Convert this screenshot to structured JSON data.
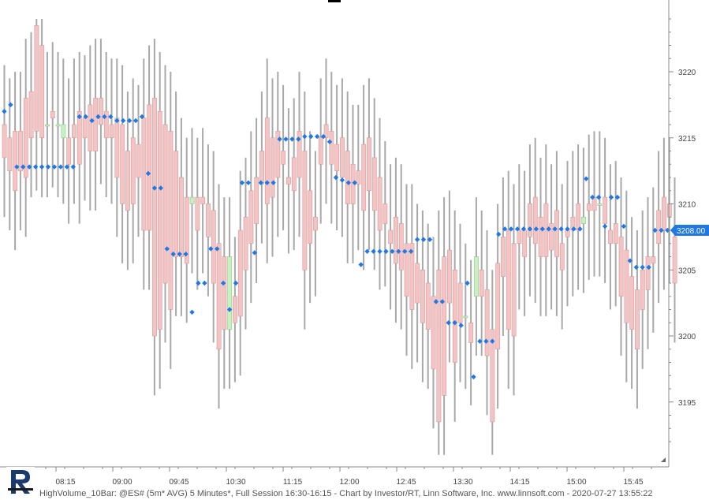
{
  "chart_data": {
    "type": "candlestick",
    "y_ticks": [
      3195,
      3200,
      3205,
      3210,
      3215,
      3220
    ],
    "ylim": [
      3190.5,
      3224.5
    ],
    "x_ticks": [
      "08:15",
      "09:00",
      "09:45",
      "10:30",
      "11:15",
      "12:00",
      "12:45",
      "13:30",
      "14:15",
      "15:00",
      "15:45"
    ],
    "last_price": "3208.00",
    "colors": {
      "up": "#c8f0c0",
      "up_edge": "#8cc88c",
      "down": "#f4c4c4",
      "down_edge": "#d49a9a",
      "marker": "#1f78e6",
      "range": "#a8a8a8",
      "price_tag": "#1f78e6"
    },
    "candles": [
      [
        3216.0,
        3213.5
      ],
      [
        3215.0,
        3212.5
      ],
      [
        3215.5,
        3211.0
      ],
      [
        3215.5,
        3212.5
      ],
      [
        3218.0,
        3212.0
      ],
      [
        3218.5,
        3215.0
      ],
      [
        3223.5,
        3215.5
      ],
      [
        3222.0,
        3215.0
      ],
      [
        3216.0,
        3216.0
      ],
      [
        3217.0,
        3216.5
      ],
      [
        3216.0,
        3216.0
      ],
      [
        3215.0,
        3216.0
      ],
      [
        3215.0,
        3213.0
      ],
      [
        3216.0,
        3215.0
      ],
      [
        3217.0,
        3213.0
      ],
      [
        3216.5,
        3215.0
      ],
      [
        3217.5,
        3214.0
      ],
      [
        3218.0,
        3214.0
      ],
      [
        3218.0,
        3216.0
      ],
      [
        3217.0,
        3215.0
      ],
      [
        3216.0,
        3215.0
      ],
      [
        3216.5,
        3212.0
      ],
      [
        3216.0,
        3210.0
      ],
      [
        3214.0,
        3209.5
      ],
      [
        3215.0,
        3210.0
      ],
      [
        3214.5,
        3212.0
      ],
      [
        3216.5,
        3208.0
      ],
      [
        3217.5,
        3208.0
      ],
      [
        3218.0,
        3200.0
      ],
      [
        3217.0,
        3200.5
      ],
      [
        3216.0,
        3204.0
      ],
      [
        3215.5,
        3202.0
      ],
      [
        3214.0,
        3206.0
      ],
      [
        3212.0,
        3206.0
      ],
      [
        3210.5,
        3205.5
      ],
      [
        3210.0,
        3210.5
      ],
      [
        3210.5,
        3208.0
      ],
      [
        3210.5,
        3210.0
      ],
      [
        3210.0,
        3207.5
      ],
      [
        3209.5,
        3204.0
      ],
      [
        3207.0,
        3199.0
      ],
      [
        3206.0,
        3200.5
      ],
      [
        3200.5,
        3206.0
      ],
      [
        3203.0,
        3201.0
      ],
      [
        3208.0,
        3201.5
      ],
      [
        3209.0,
        3205.0
      ],
      [
        3211.0,
        3207.0
      ],
      [
        3212.0,
        3208.5
      ],
      [
        3214.0,
        3211.5
      ],
      [
        3216.5,
        3210.0
      ],
      [
        3215.0,
        3210.5
      ],
      [
        3215.5,
        3212.0
      ],
      [
        3214.0,
        3213.0
      ],
      [
        3212.0,
        3211.5
      ],
      [
        3213.5,
        3211.0
      ],
      [
        3215.5,
        3212.0
      ],
      [
        3214.0,
        3205.0
      ],
      [
        3211.0,
        3207.0
      ],
      [
        3209.0,
        3208.0
      ],
      [
        3215.0,
        3213.0
      ],
      [
        3216.0,
        3215.0
      ],
      [
        3215.5,
        3213.0
      ],
      [
        3214.5,
        3212.5
      ],
      [
        3215.0,
        3212.0
      ],
      [
        3214.0,
        3210.0
      ],
      [
        3213.0,
        3210.0
      ],
      [
        3212.5,
        3211.5
      ],
      [
        3214.5,
        3209.5
      ],
      [
        3215.0,
        3211.0
      ],
      [
        3213.5,
        3209.5
      ],
      [
        3212.0,
        3208.0
      ],
      [
        3210.0,
        3208.5
      ],
      [
        3208.0,
        3207.0
      ],
      [
        3209.0,
        3205.5
      ],
      [
        3208.5,
        3205.0
      ],
      [
        3207.0,
        3203.0
      ],
      [
        3207.0,
        3202.0
      ],
      [
        3205.5,
        3202.5
      ],
      [
        3205.0,
        3201.0
      ],
      [
        3204.0,
        3200.5
      ],
      [
        3203.0,
        3197.5
      ],
      [
        3205.0,
        3193.5
      ],
      [
        3206.0,
        3195.5
      ],
      [
        3206.5,
        3202.5
      ],
      [
        3205.0,
        3198.0
      ],
      [
        3204.0,
        3201.0
      ],
      [
        3201.5,
        3201.5
      ],
      [
        3201.0,
        3199.5
      ],
      [
        3203.0,
        3206.0
      ],
      [
        3205.0,
        3203.0
      ],
      [
        3203.5,
        3198.5
      ],
      [
        3200.5,
        3193.5
      ],
      [
        3205.5,
        3199.0
      ],
      [
        3207.5,
        3204.5
      ],
      [
        3208.0,
        3200.5
      ],
      [
        3207.0,
        3200.0
      ],
      [
        3208.0,
        3207.0
      ],
      [
        3208.0,
        3206.0
      ],
      [
        3210.0,
        3207.5
      ],
      [
        3210.5,
        3207.0
      ],
      [
        3209.0,
        3206.0
      ],
      [
        3210.0,
        3206.0
      ],
      [
        3208.5,
        3206.5
      ],
      [
        3209.5,
        3206.0
      ],
      [
        3207.0,
        3205.0
      ],
      [
        3208.0,
        3207.5
      ],
      [
        3209.0,
        3208.0
      ],
      [
        3210.0,
        3208.0
      ],
      [
        3208.5,
        3209.0
      ],
      [
        3210.0,
        3209.5
      ],
      [
        3210.5,
        3209.5
      ],
      [
        3210.0,
        3210.0
      ],
      [
        3210.5,
        3208.5
      ],
      [
        3208.0,
        3207.0
      ],
      [
        3208.5,
        3207.0
      ],
      [
        3207.5,
        3203.0
      ],
      [
        3206.5,
        3201.0
      ],
      [
        3204.5,
        3200.5
      ],
      [
        3203.5,
        3199.0
      ],
      [
        3205.0,
        3202.0
      ],
      [
        3206.0,
        3203.5
      ],
      [
        3206.0,
        3205.5
      ],
      [
        3209.5,
        3207.0
      ],
      [
        3210.5,
        3208.0
      ],
      [
        3210.0,
        3209.0
      ],
      [
        3207.5,
        3204.0
      ]
    ],
    "markers": [
      3217.0,
      3217.5,
      3212.8,
      3212.8,
      3212.8,
      3212.8,
      3212.8,
      3212.8,
      3212.8,
      3212.8,
      3212.8,
      3212.8,
      3216.6,
      3216.6,
      3216.3,
      3216.6,
      3216.6,
      3216.6,
      3216.3,
      3216.3,
      3216.3,
      3216.3,
      3216.6,
      3212.3,
      3211.2,
      3211.2,
      3206.6,
      3206.2,
      3206.2,
      3206.2,
      3201.8,
      3204.0,
      3204.0,
      3206.6,
      3206.6,
      3204.0,
      3202.0,
      3204.0,
      3211.6,
      3211.6,
      3206.3,
      3211.6,
      3211.6,
      3211.6,
      3214.9,
      3214.9,
      3214.9,
      3214.9,
      3215.1,
      3215.1,
      3215.1,
      3215.1,
      3214.7,
      3212.0,
      3211.8,
      3211.6,
      3211.6,
      3205.4,
      3206.4,
      3206.4,
      3206.4,
      3206.4,
      3206.4,
      3206.4,
      3206.4,
      3206.4,
      3207.3,
      3207.3,
      3207.3,
      3202.6,
      3202.6,
      3201.0,
      3201.0,
      3200.8,
      3204.0,
      3196.9,
      3199.6,
      3199.6,
      3199.6,
      3207.7,
      3208.1,
      3208.1,
      3208.1,
      3208.1,
      3208.1,
      3208.1,
      3208.1,
      3208.1,
      3208.1,
      3208.1,
      3208.1,
      3208.1,
      3208.1,
      3211.9,
      3210.5,
      3210.5,
      3208.3,
      3210.5,
      3210.5,
      3208.3,
      3205.7,
      3205.2,
      3205.2,
      3205.2,
      3208.0,
      3208.0,
      3208.0,
      3208.0
    ]
  },
  "caption": "HighVolume_10Bar: @ES# (5m* AVG) 5 Minutes*, Full Session 16:30-16:15 - Chart by Investor/RT, Linn Software, Inc. www.linnsoft.com - 2020-07-27 13:55:22"
}
